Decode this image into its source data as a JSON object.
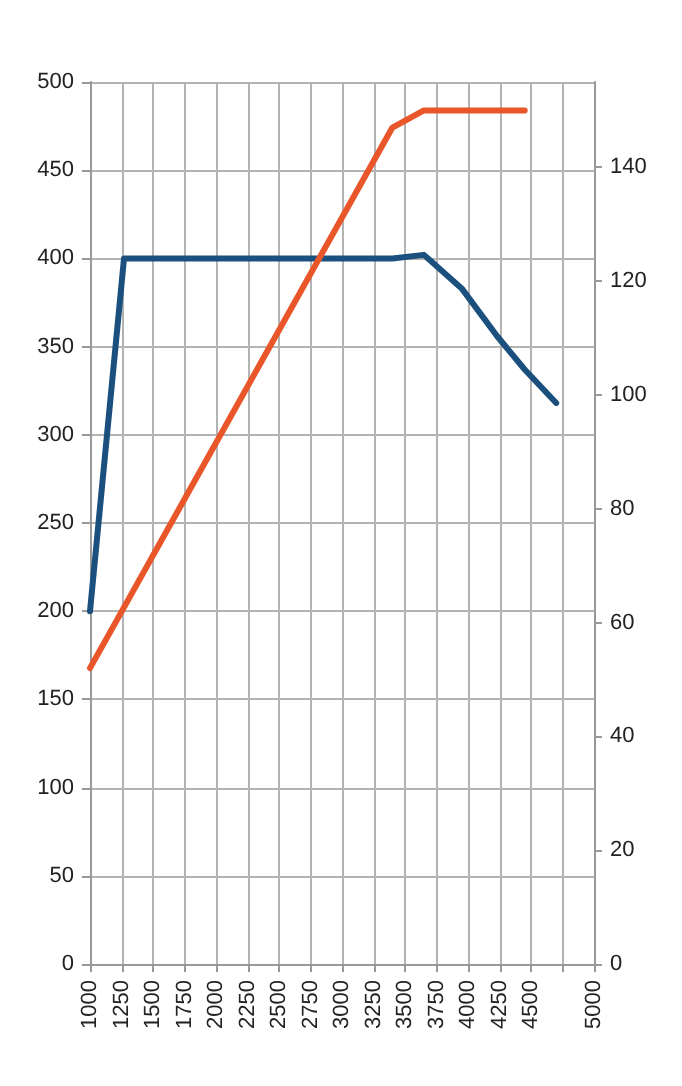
{
  "chart_data": {
    "type": "line",
    "xlim": [
      1000,
      5000
    ],
    "xticks": [
      1000,
      1250,
      1500,
      1750,
      2000,
      2250,
      2500,
      2750,
      3000,
      3250,
      3500,
      3750,
      4000,
      4250,
      4500,
      {
        "value": 4750,
        "label": null
      },
      5000
    ],
    "ylim": [
      0,
      500
    ],
    "yticks": [
      0,
      50,
      100,
      150,
      200,
      250,
      300,
      350,
      400,
      450,
      500
    ],
    "y2lim": [
      0,
      155
    ],
    "y2ticks": [
      0,
      20,
      40,
      60,
      80,
      100,
      120,
      140
    ],
    "grid": true,
    "marker": "none",
    "line_style": "solid",
    "series": [
      {
        "color": "#1a4f7e",
        "x": [
          1000,
          1270,
          3400,
          3650,
          3950,
          4230,
          4450,
          4700
        ],
        "values": [
          200,
          400,
          400,
          402,
          383,
          356,
          337,
          318
        ]
      },
      {
        "color": "#e8562a",
        "axis": "y2",
        "x": [
          1000,
          3400,
          3650,
          4450
        ],
        "values": [
          52,
          147,
          150,
          150
        ]
      }
    ]
  }
}
